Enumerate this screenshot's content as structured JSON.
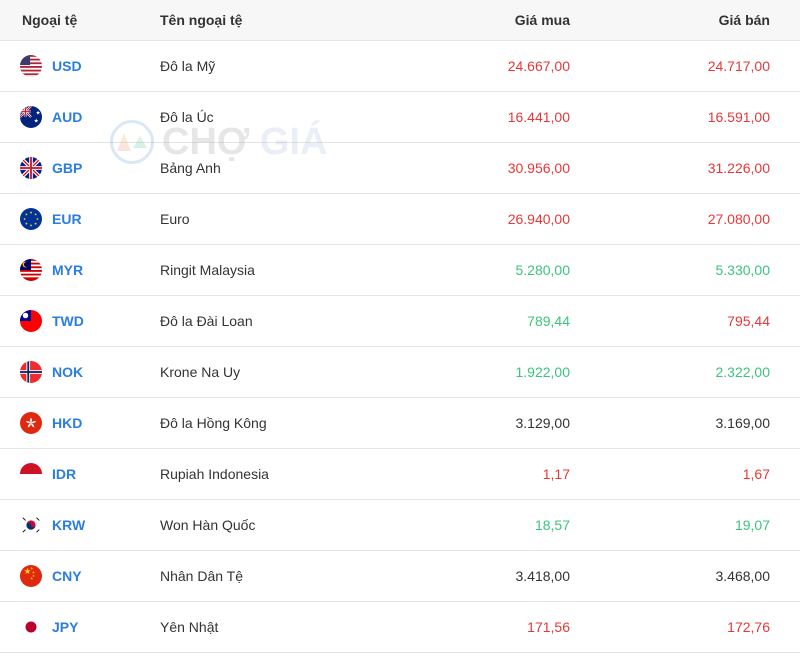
{
  "headers": {
    "code": "Ngoại tệ",
    "name": "Tên ngoại tệ",
    "buy": "Giá mua",
    "sell": "Giá bán"
  },
  "watermark": {
    "part1": "CHỢ",
    "part2": "GIÁ"
  },
  "colors": {
    "red": "#e63838",
    "green": "#3cc47c",
    "black": "#333333",
    "link": "#2a7de1",
    "header_bg": "#f7f7f7",
    "border": "#e5e5e5"
  },
  "rows": [
    {
      "code": "USD",
      "name": "Đô la Mỹ",
      "buy": "24.667,00",
      "buy_color": "red",
      "sell": "24.717,00",
      "sell_color": "red",
      "flag": "usd"
    },
    {
      "code": "AUD",
      "name": "Đô la Úc",
      "buy": "16.441,00",
      "buy_color": "red",
      "sell": "16.591,00",
      "sell_color": "red",
      "flag": "aud"
    },
    {
      "code": "GBP",
      "name": "Bảng Anh",
      "buy": "30.956,00",
      "buy_color": "red",
      "sell": "31.226,00",
      "sell_color": "red",
      "flag": "gbp"
    },
    {
      "code": "EUR",
      "name": "Euro",
      "buy": "26.940,00",
      "buy_color": "red",
      "sell": "27.080,00",
      "sell_color": "red",
      "flag": "eur"
    },
    {
      "code": "MYR",
      "name": "Ringit Malaysia",
      "buy": "5.280,00",
      "buy_color": "green",
      "sell": "5.330,00",
      "sell_color": "green",
      "flag": "myr"
    },
    {
      "code": "TWD",
      "name": "Đô la Đài Loan",
      "buy": "789,44",
      "buy_color": "green",
      "sell": "795,44",
      "sell_color": "red",
      "flag": "twd"
    },
    {
      "code": "NOK",
      "name": "Krone Na Uy",
      "buy": "1.922,00",
      "buy_color": "green",
      "sell": "2.322,00",
      "sell_color": "green",
      "flag": "nok"
    },
    {
      "code": "HKD",
      "name": "Đô la Hồng Kông",
      "buy": "3.129,00",
      "buy_color": "black",
      "sell": "3.169,00",
      "sell_color": "black",
      "flag": "hkd"
    },
    {
      "code": "IDR",
      "name": "Rupiah Indonesia",
      "buy": "1,17",
      "buy_color": "red",
      "sell": "1,67",
      "sell_color": "red",
      "flag": "idr"
    },
    {
      "code": "KRW",
      "name": "Won Hàn Quốc",
      "buy": "18,57",
      "buy_color": "green",
      "sell": "19,07",
      "sell_color": "green",
      "flag": "krw"
    },
    {
      "code": "CNY",
      "name": "Nhân Dân Tệ",
      "buy": "3.418,00",
      "buy_color": "black",
      "sell": "3.468,00",
      "sell_color": "black",
      "flag": "cny"
    },
    {
      "code": "JPY",
      "name": "Yên Nhật",
      "buy": "171,56",
      "buy_color": "red",
      "sell": "172,76",
      "sell_color": "red",
      "flag": "jpy"
    }
  ]
}
